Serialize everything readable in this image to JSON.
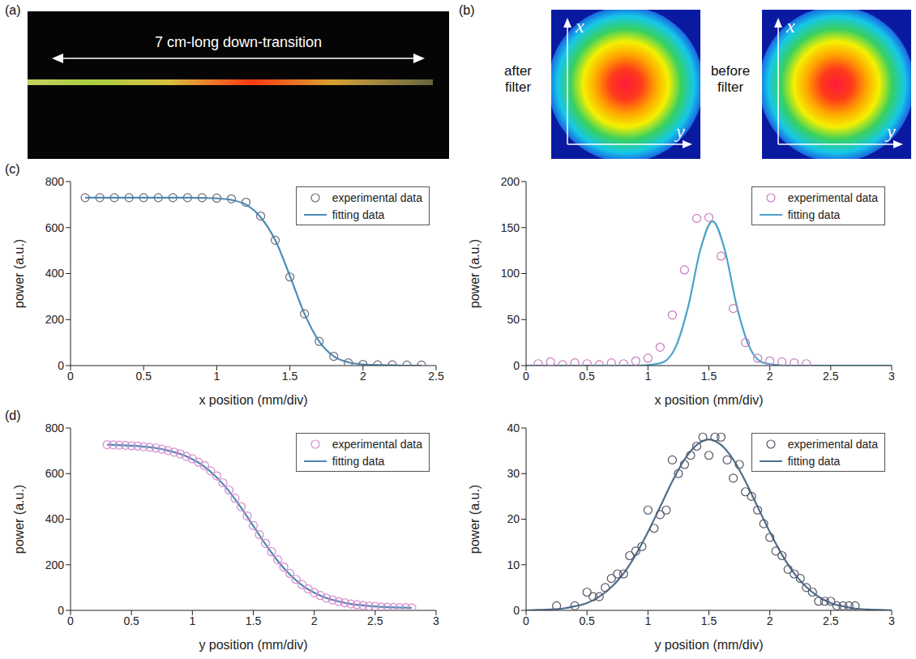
{
  "panels": {
    "a": {
      "label": "(a)",
      "annotation": "7 cm-long down-transition"
    },
    "b": {
      "label": "(b)",
      "images": [
        {
          "caption": "after filter",
          "axis_labels": [
            "x",
            "y"
          ]
        },
        {
          "caption": "before filter",
          "axis_labels": [
            "x",
            "y"
          ]
        }
      ]
    },
    "c": {
      "label": "(c)"
    },
    "d": {
      "label": "(d)"
    }
  },
  "chart_data": [
    {
      "type": "scatter",
      "x_label": "x position (mm/div)",
      "y_label": "power (a.u.)",
      "xlim": [
        0,
        2.5
      ],
      "xticks": [
        0,
        0.5,
        1,
        1.5,
        2,
        2.5
      ],
      "ylim": [
        0,
        800
      ],
      "yticks": [
        0,
        200,
        400,
        600,
        800
      ],
      "grid": false,
      "legend": "top-right",
      "series": [
        {
          "name": "experimental data",
          "type": "scatter",
          "marker": "circle",
          "color": "#6b6b7b",
          "x": [
            0.1,
            0.2,
            0.3,
            0.4,
            0.5,
            0.6,
            0.7,
            0.8,
            0.9,
            1.0,
            1.1,
            1.2,
            1.3,
            1.4,
            1.5,
            1.6,
            1.7,
            1.8,
            1.9,
            2.0,
            2.1,
            2.2,
            2.3,
            2.4
          ],
          "values": [
            730,
            730,
            730,
            730,
            730,
            730,
            730,
            730,
            730,
            728,
            725,
            710,
            650,
            545,
            385,
            225,
            105,
            40,
            12,
            5,
            3,
            3,
            2,
            2
          ]
        },
        {
          "name": "fitting data",
          "type": "line",
          "line_style": "solid",
          "color": "#4a8db8",
          "x": [
            0.1,
            0.2,
            0.3,
            0.4,
            0.5,
            0.6,
            0.7,
            0.8,
            0.9,
            1.0,
            1.1,
            1.2,
            1.3,
            1.4,
            1.5,
            1.6,
            1.7,
            1.8,
            1.9,
            2.0,
            2.1,
            2.2,
            2.3,
            2.4
          ],
          "values": [
            730,
            730,
            730,
            730,
            730,
            730,
            730,
            730,
            729,
            727,
            720,
            700,
            645,
            545,
            390,
            225,
            105,
            40,
            14,
            5,
            2,
            1,
            0,
            0
          ]
        }
      ]
    },
    {
      "type": "scatter",
      "x_label": "x position (mm/div)",
      "y_label": "power (a.u.)",
      "xlim": [
        0,
        3
      ],
      "xticks": [
        0,
        0.5,
        1,
        1.5,
        2,
        2.5,
        3
      ],
      "ylim": [
        0,
        200
      ],
      "yticks": [
        0,
        50,
        100,
        150,
        200
      ],
      "grid": false,
      "legend": "top-right",
      "series": [
        {
          "name": "experimental data",
          "type": "scatter",
          "marker": "circle",
          "color": "#c77bbf",
          "x": [
            0.1,
            0.2,
            0.3,
            0.4,
            0.5,
            0.6,
            0.7,
            0.8,
            0.9,
            1.0,
            1.1,
            1.2,
            1.3,
            1.4,
            1.5,
            1.6,
            1.7,
            1.8,
            1.9,
            2.0,
            2.1,
            2.2,
            2.3
          ],
          "values": [
            2,
            4,
            1,
            3,
            2,
            1,
            3,
            2,
            5,
            8,
            20,
            55,
            104,
            160,
            161,
            119,
            62,
            25,
            8,
            5,
            4,
            3,
            2
          ]
        },
        {
          "name": "fitting data",
          "type": "line",
          "line_style": "solid",
          "color": "#4aa3c8",
          "x": [
            0,
            0.5,
            0.83,
            0.93,
            1.03,
            1.13,
            1.23,
            1.33,
            1.43,
            1.53,
            1.63,
            1.73,
            1.83,
            1.93,
            2.03,
            2.13,
            2.23,
            2.5,
            3
          ],
          "values": [
            0,
            0,
            0,
            0,
            1,
            4,
            21,
            64,
            126,
            157,
            126,
            64,
            21,
            4,
            1,
            0,
            0,
            0,
            0
          ]
        }
      ]
    },
    {
      "type": "scatter",
      "x_label": "y position (mm/div)",
      "y_label": "power (a.u.)",
      "xlim": [
        0,
        3
      ],
      "xticks": [
        0,
        0.5,
        1,
        1.5,
        2,
        2.5,
        3
      ],
      "ylim": [
        0,
        800
      ],
      "yticks": [
        0,
        200,
        400,
        600,
        800
      ],
      "grid": false,
      "legend": "top-right",
      "series": [
        {
          "name": "experimental data",
          "type": "scatter",
          "marker": "circle",
          "color": "#d58bd0",
          "x": [
            0.3,
            0.35,
            0.4,
            0.45,
            0.5,
            0.55,
            0.6,
            0.65,
            0.7,
            0.75,
            0.8,
            0.85,
            0.9,
            0.95,
            1.0,
            1.05,
            1.1,
            1.15,
            1.2,
            1.25,
            1.3,
            1.35,
            1.4,
            1.45,
            1.5,
            1.55,
            1.6,
            1.65,
            1.7,
            1.75,
            1.8,
            1.85,
            1.9,
            1.95,
            2.0,
            2.05,
            2.1,
            2.15,
            2.2,
            2.25,
            2.3,
            2.35,
            2.4,
            2.45,
            2.5,
            2.55,
            2.6,
            2.65,
            2.7,
            2.75,
            2.8
          ],
          "values": [
            727,
            726,
            725,
            724,
            722,
            721,
            718,
            715,
            712,
            707,
            701,
            694,
            686,
            675,
            665,
            650,
            635,
            612,
            590,
            560,
            528,
            492,
            455,
            414,
            372,
            332,
            294,
            257,
            222,
            190,
            162,
            136,
            113,
            94,
            78,
            65,
            54,
            46,
            39,
            33,
            28,
            25,
            22,
            19,
            17,
            15,
            14,
            13,
            12,
            12,
            11
          ]
        },
        {
          "name": "fitting data",
          "type": "line",
          "line_style": "solid",
          "color": "#4d87b0",
          "x": [
            0.3,
            0.4,
            0.5,
            0.6,
            0.7,
            0.8,
            0.9,
            1.0,
            1.1,
            1.2,
            1.3,
            1.4,
            1.5,
            1.6,
            1.7,
            1.8,
            1.9,
            2.0,
            2.1,
            2.2,
            2.3,
            2.4,
            2.5,
            2.6,
            2.7,
            2.8
          ],
          "values": [
            727,
            725,
            722,
            718,
            712,
            701,
            686,
            663,
            630,
            583,
            523,
            450,
            370,
            290,
            217,
            157,
            110,
            77,
            54,
            39,
            28,
            22,
            17,
            14,
            12,
            11
          ]
        }
      ]
    },
    {
      "type": "scatter",
      "x_label": "y position (mm/div)",
      "y_label": "power (a.u.)",
      "xlim": [
        0,
        3
      ],
      "xticks": [
        0,
        0.5,
        1,
        1.5,
        2,
        2.5,
        3
      ],
      "ylim": [
        0,
        40
      ],
      "yticks": [
        0,
        10,
        20,
        30,
        40
      ],
      "grid": false,
      "legend": "top-right",
      "series": [
        {
          "name": "experimental data",
          "type": "scatter",
          "marker": "circle",
          "color": "#555566",
          "x": [
            0.25,
            0.4,
            0.5,
            0.55,
            0.6,
            0.65,
            0.7,
            0.75,
            0.8,
            0.85,
            0.9,
            0.95,
            1.0,
            1.05,
            1.1,
            1.15,
            1.2,
            1.25,
            1.3,
            1.35,
            1.4,
            1.45,
            1.5,
            1.55,
            1.6,
            1.65,
            1.7,
            1.75,
            1.8,
            1.85,
            1.9,
            1.95,
            2.0,
            2.05,
            2.1,
            2.15,
            2.2,
            2.25,
            2.3,
            2.35,
            2.4,
            2.45,
            2.5,
            2.55,
            2.6,
            2.65,
            2.7
          ],
          "values": [
            1,
            1,
            4,
            3,
            3,
            5,
            7,
            8,
            8,
            12,
            13,
            14,
            22,
            18,
            21,
            22,
            33,
            30,
            32,
            34,
            36,
            38,
            34,
            38,
            38,
            33,
            29,
            32,
            26,
            25,
            22,
            19,
            16,
            13,
            12,
            9,
            8,
            7,
            5,
            4,
            2,
            2,
            2,
            1,
            1,
            1,
            1
          ]
        },
        {
          "name": "fitting data",
          "type": "line",
          "line_style": "solid",
          "color": "#4e6e8e",
          "x": [
            0,
            0.1,
            0.2,
            0.3,
            0.4,
            0.5,
            0.6,
            0.7,
            0.8,
            0.9,
            1.0,
            1.1,
            1.2,
            1.3,
            1.4,
            1.5,
            1.6,
            1.7,
            1.8,
            1.9,
            2.0,
            2.1,
            2.2,
            2.3,
            2.4,
            2.5,
            2.6,
            2.7,
            2.8,
            2.9,
            3.0
          ],
          "values": [
            0,
            0.1,
            0.2,
            0.4,
            0.9,
            1.6,
            3.0,
            5.1,
            8.1,
            12.2,
            17.2,
            22.7,
            28.3,
            33.1,
            36.3,
            37.5,
            36.3,
            33.1,
            28.3,
            22.7,
            17.2,
            12.2,
            8.1,
            5.1,
            3.0,
            1.6,
            0.9,
            0.4,
            0.2,
            0.1,
            0
          ]
        }
      ]
    }
  ]
}
